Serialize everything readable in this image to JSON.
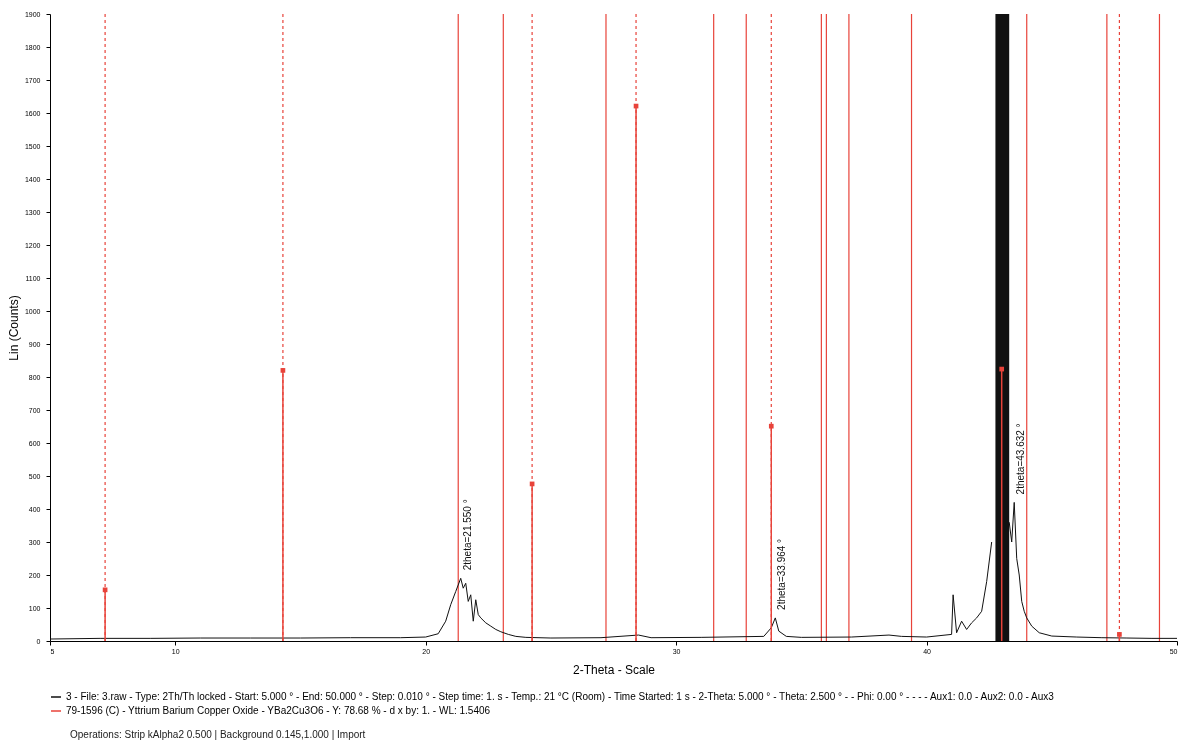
{
  "chart_data": {
    "type": "line",
    "xlabel": "2-Theta - Scale",
    "ylabel": "Lin (Counts)",
    "xlim": [
      5,
      50
    ],
    "xticks": [
      5,
      10,
      20,
      30,
      40,
      50
    ],
    "ylim": [
      0,
      1900
    ],
    "yticks": [
      0,
      100,
      200,
      300,
      400,
      500,
      600,
      700,
      800,
      900,
      1000,
      1100,
      1200,
      1300,
      1400,
      1500,
      1600,
      1700,
      1800,
      1900
    ],
    "legend": "bottom",
    "series": [
      {
        "name": "3 - File: 3.raw - Type: 2Th/Th locked - Start: 5.000 ° - End: 50.000 ° - Step: 0.010 ° - Step time: 1. s - Temp.: 21 °C (Room) - Time Started: 1 s - 2-Theta: 5.000 ° - Theta: 2.500 ° - - Phi: 0.00 ° - - - - Aux1: 0.0 - Aux2: 0.0 - Aux3",
        "color": "#111111",
        "x": [
          5,
          7,
          9,
          11,
          13,
          15,
          17,
          19,
          20,
          20.5,
          20.8,
          21.0,
          21.2,
          21.4,
          21.5,
          21.6,
          21.7,
          21.8,
          21.9,
          22.0,
          22.1,
          22.2,
          22.4,
          22.6,
          22.8,
          23.0,
          23.3,
          23.6,
          24,
          25,
          27,
          28.5,
          29,
          31,
          33.5,
          33.8,
          33.96,
          34.1,
          34.4,
          35,
          37,
          38.5,
          39,
          40,
          41.0,
          41.06,
          41.2,
          41.4,
          41.6,
          41.8,
          42.0,
          42.2,
          42.4,
          42.6,
          42.75,
          43.3,
          43.4,
          43.5,
          43.6,
          43.7,
          43.8,
          43.9,
          44.0,
          44.2,
          44.5,
          45,
          46,
          47,
          48,
          49,
          50
        ],
        "values": [
          6,
          8,
          8,
          9,
          9,
          9,
          10,
          10,
          12,
          22,
          60,
          110,
          150,
          190,
          160,
          175,
          120,
          140,
          60,
          125,
          80,
          70,
          55,
          45,
          35,
          28,
          20,
          14,
          11,
          9,
          10,
          18,
          10,
          11,
          14,
          40,
          70,
          30,
          14,
          11,
          12,
          18,
          14,
          12,
          20,
          140,
          25,
          60,
          35,
          55,
          70,
          90,
          180,
          300,
          null,
          360,
          300,
          420,
          250,
          200,
          120,
          90,
          70,
          45,
          25,
          15,
          12,
          10,
          9,
          8,
          8
        ]
      },
      {
        "name": "79-1596 (C) - Yttrium Barium Copper Oxide - YBa2Cu3O6 - Y: 78.68 % - d x by: 1. - WL: 1.5406",
        "color": "#e8433a",
        "type": "lollipop",
        "marker": "square",
        "x": [
          7.2,
          14.3,
          24.25,
          28.4,
          33.8,
          43.0,
          47.7
        ],
        "values": [
          155,
          820,
          476,
          1621,
          651,
          824,
          20
        ]
      }
    ],
    "ref_lines": [
      {
        "axis": "x",
        "value": 7.2,
        "color": "#e8433a",
        "line_style": "dashed"
      },
      {
        "axis": "x",
        "value": 14.3,
        "color": "#e8433a",
        "line_style": "dashed"
      },
      {
        "axis": "x",
        "value": 21.3,
        "color": "#e8433a",
        "line_style": "solid"
      },
      {
        "axis": "x",
        "value": 23.1,
        "color": "#e8433a",
        "line_style": "solid"
      },
      {
        "axis": "x",
        "value": 24.25,
        "color": "#e8433a",
        "line_style": "dashed"
      },
      {
        "axis": "x",
        "value": 27.2,
        "color": "#e8433a",
        "line_style": "solid"
      },
      {
        "axis": "x",
        "value": 28.4,
        "color": "#e8433a",
        "line_style": "dashed"
      },
      {
        "axis": "x",
        "value": 31.5,
        "color": "#e8433a",
        "line_style": "solid"
      },
      {
        "axis": "x",
        "value": 32.8,
        "color": "#e8433a",
        "line_style": "solid"
      },
      {
        "axis": "x",
        "value": 33.8,
        "color": "#e8433a",
        "line_style": "dashed"
      },
      {
        "axis": "x",
        "value": 35.8,
        "color": "#e8433a",
        "line_style": "solid"
      },
      {
        "axis": "x",
        "value": 36.0,
        "color": "#e8433a",
        "line_style": "solid"
      },
      {
        "axis": "x",
        "value": 36.9,
        "color": "#e8433a",
        "line_style": "solid"
      },
      {
        "axis": "x",
        "value": 39.4,
        "color": "#e8433a",
        "line_style": "solid"
      },
      {
        "axis": "x",
        "value": 44.0,
        "color": "#e8433a",
        "line_style": "solid"
      },
      {
        "axis": "x",
        "value": 47.2,
        "color": "#e8433a",
        "line_style": "solid"
      },
      {
        "axis": "x",
        "value": 47.7,
        "color": "#e8433a",
        "line_style": "dashed"
      },
      {
        "axis": "x",
        "value": 49.3,
        "color": "#e8433a",
        "line_style": "solid"
      }
    ],
    "bands": [
      {
        "axis": "x",
        "from": 42.75,
        "to": 43.3,
        "color": "#111111"
      }
    ],
    "annotations": [
      {
        "text": "2theta=21.550 °",
        "x": 21.4,
        "y": 190
      },
      {
        "text": "2theta=33.964 °",
        "x": 33.96,
        "y": 70
      },
      {
        "text": "2theta=43.632 °",
        "x": 43.5,
        "y": 420
      },
      "Operations: Strip kAlpha2 0.500 | Background 0.145,1.000 | Import"
    ]
  }
}
